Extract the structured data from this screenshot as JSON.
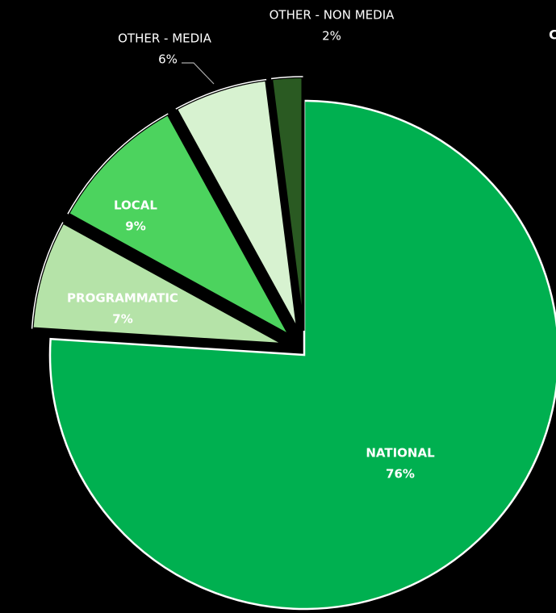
{
  "chart_data": {
    "type": "pie",
    "title": "C",
    "categories": [
      "NATIONAL",
      "PROGRAMMATIC",
      "LOCAL",
      "OTHER - MEDIA",
      "OTHER - NON MEDIA"
    ],
    "values": [
      76,
      7,
      9,
      6,
      2
    ],
    "value_labels": [
      "76%",
      "7%",
      "9%",
      "6%",
      "2%"
    ],
    "colors": [
      "#00b050",
      "#b5e3a8",
      "#4cd35e",
      "#d7f2d0",
      "#2a5a22"
    ]
  }
}
